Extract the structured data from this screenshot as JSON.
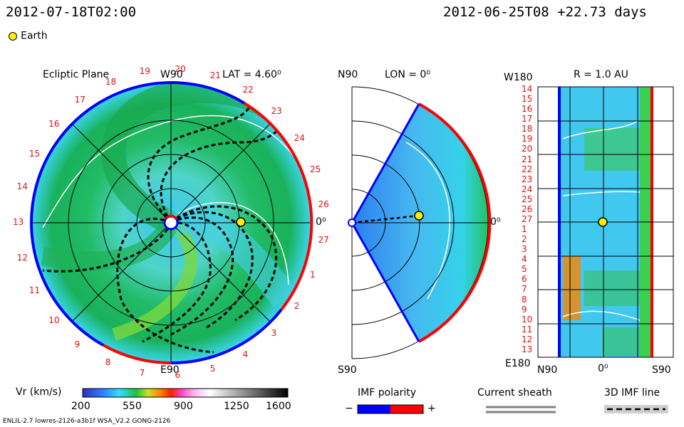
{
  "header": {
    "datetime_left": "2012-07-18T02:00",
    "datetime_right": "2012-06-25T08 +22.73 days"
  },
  "legend": {
    "earth_label": "Earth"
  },
  "ecliptic": {
    "title": "Ecliptic Plane",
    "lat_label": "LAT = 4.60⁰",
    "top_label": "W90",
    "bottom_label": "E90",
    "right_label": "0⁰",
    "carrington_numbers": [
      "19",
      "20",
      "21",
      "22",
      "23",
      "24",
      "25",
      "26",
      "27",
      "1",
      "2",
      "3",
      "4",
      "5",
      "6",
      "7",
      "8",
      "9",
      "10",
      "11",
      "12",
      "13",
      "14",
      "15",
      "16",
      "17",
      "18"
    ]
  },
  "meridional": {
    "lon_label": "LON = 0⁰",
    "top_label": "N90",
    "bottom_label": "S90",
    "right_label": "0⁰"
  },
  "latlon": {
    "title": "R = 1.0 AU",
    "top_left_label": "W180",
    "bottom_left_label": "E180",
    "x_labels": [
      "N90",
      "0⁰",
      "S90"
    ],
    "y_labels": [
      "14",
      "15",
      "16",
      "17",
      "18",
      "19",
      "20",
      "21",
      "22",
      "23",
      "24",
      "25",
      "26",
      "27",
      "1",
      "2",
      "3",
      "4",
      "5",
      "6",
      "7",
      "8",
      "9",
      "10",
      "11",
      "12",
      "13"
    ]
  },
  "colorbar": {
    "label": "Vr (km/s)",
    "ticks": [
      "200",
      "550",
      "900",
      "1250",
      "1600"
    ]
  },
  "imf_polarity": {
    "title": "IMF polarity",
    "minus": "−",
    "plus": "+",
    "neg_color": "#0000ff",
    "pos_color": "#ff0000"
  },
  "current_sheath": {
    "title": "Current sheath"
  },
  "imf_line": {
    "title": "3D IMF line"
  },
  "footer": {
    "model_info": "ENLIL-2.7 lowres-2126-a3b1f WSA_V2.2 GONG-2126"
  }
}
